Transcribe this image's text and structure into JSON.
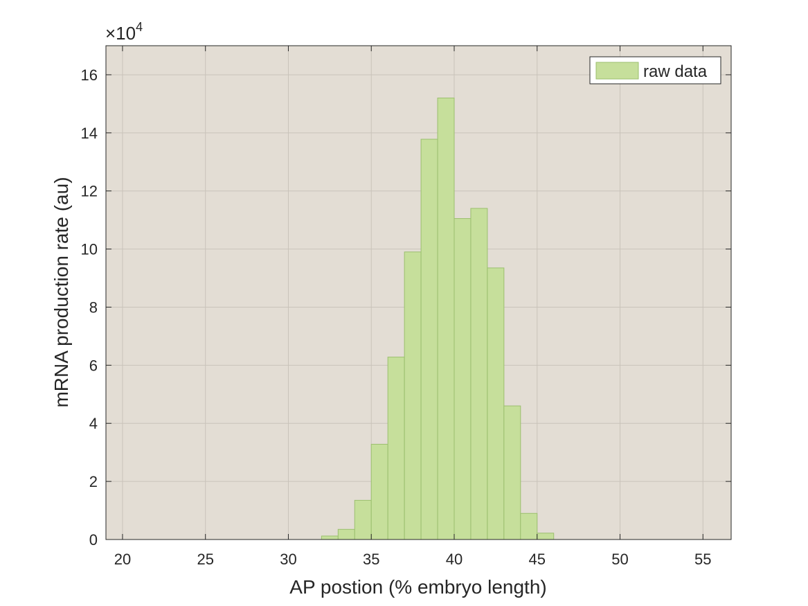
{
  "chart_data": {
    "type": "bar",
    "xlabel": "AP postion (% embryo length)",
    "ylabel": "mRNA production rate (au)",
    "y_exponent_label": "×10",
    "y_exponent_power": "4",
    "xlim": [
      19,
      56.7
    ],
    "ylim": [
      0,
      17
    ],
    "xticks": [
      20,
      25,
      30,
      35,
      40,
      45,
      50,
      55
    ],
    "yticks": [
      0,
      2,
      4,
      6,
      8,
      10,
      12,
      14,
      16
    ],
    "grid": true,
    "bin_width": 1,
    "series": [
      {
        "name": "raw data",
        "bins": [
          {
            "x": 32.5,
            "value": 0.12
          },
          {
            "x": 33.5,
            "value": 0.35
          },
          {
            "x": 34.5,
            "value": 1.35
          },
          {
            "x": 35.5,
            "value": 3.28
          },
          {
            "x": 36.5,
            "value": 6.28
          },
          {
            "x": 37.5,
            "value": 9.9
          },
          {
            "x": 38.5,
            "value": 13.78
          },
          {
            "x": 39.5,
            "value": 15.2
          },
          {
            "x": 40.5,
            "value": 11.05
          },
          {
            "x": 41.5,
            "value": 11.4
          },
          {
            "x": 42.5,
            "value": 9.35
          },
          {
            "x": 43.5,
            "value": 4.6
          },
          {
            "x": 44.5,
            "value": 0.9
          },
          {
            "x": 45.5,
            "value": 0.22
          }
        ]
      }
    ],
    "legend_position": "top-right",
    "colors": {
      "axes_background": "#e3ddd4",
      "bar_fill": "#c6df9b",
      "bar_stroke": "#9bbf6e",
      "grid": "#c9c3ba",
      "axis": "#262626"
    }
  }
}
